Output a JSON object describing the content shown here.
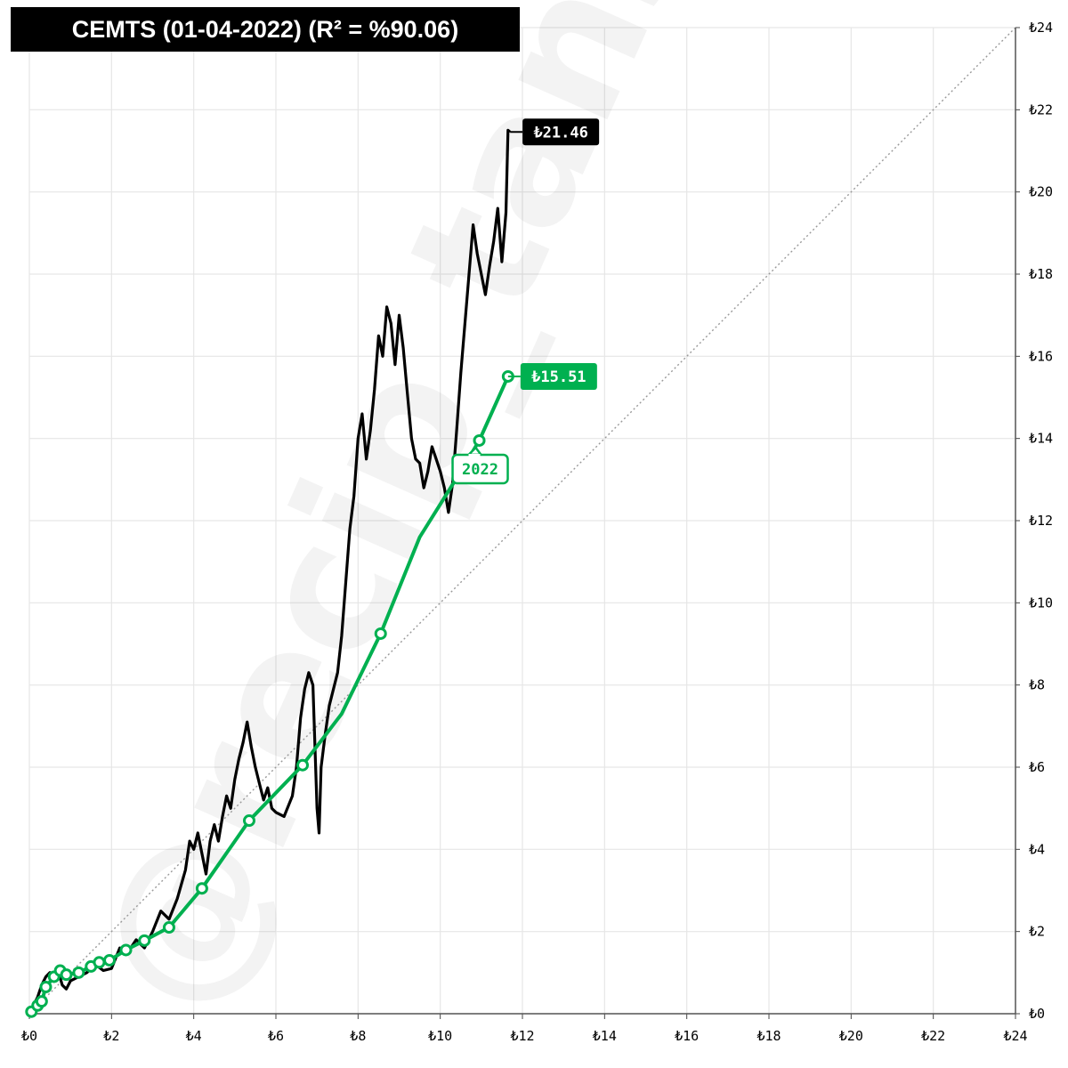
{
  "title": "CEMTS (01-04-2022) (R² = %90.06)",
  "watermark": "@recip_tansel",
  "chart_data": {
    "type": "line",
    "xlim": [
      0,
      24
    ],
    "ylim": [
      0,
      24
    ],
    "x_ticks": [
      "₺0",
      "₺2",
      "₺4",
      "₺6",
      "₺8",
      "₺10",
      "₺12",
      "₺14",
      "₺16",
      "₺18",
      "₺20",
      "₺22",
      "₺24"
    ],
    "y_ticks": [
      "₺0",
      "₺2",
      "₺4",
      "₺6",
      "₺8",
      "₺10",
      "₺12",
      "₺14",
      "₺16",
      "₺18",
      "₺20",
      "₺22",
      "₺24"
    ],
    "grid": true,
    "reference_line": "y = x",
    "colors": {
      "price": "#000000",
      "fair": "#00b050",
      "reference": "#999999"
    },
    "series": [
      {
        "role": "price",
        "color": "#000000",
        "last_label": "₺21.46",
        "points": [
          [
            0,
            0
          ],
          [
            0.1,
            0.2
          ],
          [
            0.2,
            0.4
          ],
          [
            0.3,
            0.7
          ],
          [
            0.4,
            0.9
          ],
          [
            0.5,
            1.0
          ],
          [
            0.6,
            0.8
          ],
          [
            0.7,
            1.05
          ],
          [
            0.8,
            0.7
          ],
          [
            0.9,
            0.6
          ],
          [
            1.0,
            0.8
          ],
          [
            1.2,
            0.9
          ],
          [
            1.4,
            1.0
          ],
          [
            1.6,
            1.2
          ],
          [
            1.8,
            1.05
          ],
          [
            2.0,
            1.1
          ],
          [
            2.2,
            1.6
          ],
          [
            2.4,
            1.5
          ],
          [
            2.6,
            1.8
          ],
          [
            2.8,
            1.6
          ],
          [
            3.0,
            2.0
          ],
          [
            3.2,
            2.5
          ],
          [
            3.4,
            2.3
          ],
          [
            3.6,
            2.8
          ],
          [
            3.8,
            3.5
          ],
          [
            3.9,
            4.2
          ],
          [
            4.0,
            4.0
          ],
          [
            4.1,
            4.4
          ],
          [
            4.2,
            3.9
          ],
          [
            4.3,
            3.4
          ],
          [
            4.4,
            4.2
          ],
          [
            4.5,
            4.6
          ],
          [
            4.6,
            4.2
          ],
          [
            4.7,
            4.8
          ],
          [
            4.8,
            5.3
          ],
          [
            4.9,
            5.0
          ],
          [
            5.0,
            5.7
          ],
          [
            5.1,
            6.2
          ],
          [
            5.2,
            6.6
          ],
          [
            5.3,
            7.1
          ],
          [
            5.4,
            6.5
          ],
          [
            5.5,
            6.0
          ],
          [
            5.6,
            5.6
          ],
          [
            5.7,
            5.2
          ],
          [
            5.8,
            5.5
          ],
          [
            5.9,
            5.0
          ],
          [
            6.0,
            4.9
          ],
          [
            6.2,
            4.8
          ],
          [
            6.4,
            5.3
          ],
          [
            6.5,
            6.0
          ],
          [
            6.6,
            7.2
          ],
          [
            6.7,
            7.9
          ],
          [
            6.8,
            8.3
          ],
          [
            6.9,
            8.0
          ],
          [
            7.0,
            5.0
          ],
          [
            7.05,
            4.4
          ],
          [
            7.1,
            6.0
          ],
          [
            7.2,
            6.8
          ],
          [
            7.3,
            7.5
          ],
          [
            7.5,
            8.3
          ],
          [
            7.6,
            9.2
          ],
          [
            7.7,
            10.5
          ],
          [
            7.8,
            11.8
          ],
          [
            7.9,
            12.6
          ],
          [
            8.0,
            14.0
          ],
          [
            8.1,
            14.6
          ],
          [
            8.2,
            13.5
          ],
          [
            8.3,
            14.2
          ],
          [
            8.4,
            15.2
          ],
          [
            8.5,
            16.5
          ],
          [
            8.6,
            16.0
          ],
          [
            8.7,
            17.2
          ],
          [
            8.8,
            16.8
          ],
          [
            8.9,
            15.8
          ],
          [
            9.0,
            17.0
          ],
          [
            9.1,
            16.2
          ],
          [
            9.2,
            15.1
          ],
          [
            9.3,
            14.0
          ],
          [
            9.4,
            13.5
          ],
          [
            9.5,
            13.4
          ],
          [
            9.6,
            12.8
          ],
          [
            9.7,
            13.2
          ],
          [
            9.8,
            13.8
          ],
          [
            9.9,
            13.5
          ],
          [
            10.0,
            13.2
          ],
          [
            10.1,
            12.8
          ],
          [
            10.2,
            12.2
          ],
          [
            10.3,
            12.9
          ],
          [
            10.4,
            14.2
          ],
          [
            10.5,
            15.6
          ],
          [
            10.6,
            16.8
          ],
          [
            10.7,
            18.0
          ],
          [
            10.8,
            19.2
          ],
          [
            10.9,
            18.5
          ],
          [
            11.0,
            18.0
          ],
          [
            11.1,
            17.5
          ],
          [
            11.2,
            18.2
          ],
          [
            11.3,
            18.8
          ],
          [
            11.4,
            19.6
          ],
          [
            11.5,
            18.3
          ],
          [
            11.6,
            19.5
          ],
          [
            11.65,
            21.5
          ],
          [
            11.7,
            21.46
          ]
        ]
      },
      {
        "role": "fair_value",
        "color": "#00b050",
        "last_label": "₺15.51",
        "callout_label": "2022",
        "points": [
          [
            0,
            0
          ],
          [
            0.05,
            0.05
          ],
          [
            0.1,
            0.15
          ],
          [
            0.2,
            0.2
          ],
          [
            0.3,
            0.3
          ],
          [
            0.4,
            0.65
          ],
          [
            0.6,
            0.9
          ],
          [
            0.75,
            1.05
          ],
          [
            0.9,
            0.95
          ],
          [
            1.2,
            1.0
          ],
          [
            1.5,
            1.15
          ],
          [
            1.7,
            1.25
          ],
          [
            1.95,
            1.3
          ],
          [
            2.35,
            1.55
          ],
          [
            2.8,
            1.78
          ],
          [
            3.4,
            2.1
          ],
          [
            4.2,
            3.05
          ],
          [
            5.35,
            4.7
          ],
          [
            6.65,
            6.05
          ],
          [
            7.6,
            7.3
          ],
          [
            8.55,
            9.25
          ],
          [
            9.5,
            11.6
          ],
          [
            10.5,
            13.2
          ],
          [
            10.95,
            13.95
          ],
          [
            11.65,
            15.51
          ]
        ],
        "markers": [
          [
            0.05,
            0.05
          ],
          [
            0.2,
            0.2
          ],
          [
            0.3,
            0.3
          ],
          [
            0.4,
            0.65
          ],
          [
            0.6,
            0.9
          ],
          [
            0.75,
            1.05
          ],
          [
            0.9,
            0.95
          ],
          [
            1.2,
            1.0
          ],
          [
            1.5,
            1.15
          ],
          [
            1.7,
            1.25
          ],
          [
            1.95,
            1.3
          ],
          [
            2.35,
            1.55
          ],
          [
            2.8,
            1.78
          ],
          [
            3.4,
            2.1
          ],
          [
            4.2,
            3.05
          ],
          [
            5.35,
            4.7
          ],
          [
            6.65,
            6.05
          ],
          [
            8.55,
            9.25
          ],
          [
            10.95,
            13.95
          ],
          [
            11.65,
            15.51
          ]
        ]
      }
    ]
  }
}
